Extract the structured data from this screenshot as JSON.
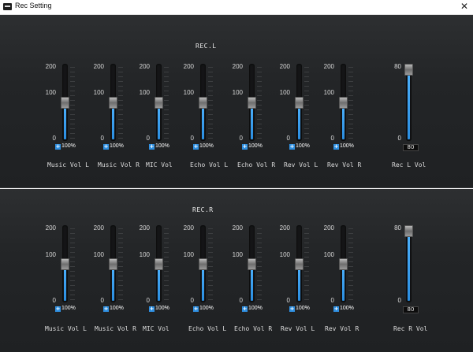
{
  "window": {
    "title": "Rec Setting",
    "close_glyph": "✕"
  },
  "sections": [
    {
      "title": "REC.L",
      "channels": [
        {
          "label": "Music Vol L",
          "max": "200",
          "mid": "100",
          "min": "0",
          "percent": "100%",
          "level": 100,
          "range": 200
        },
        {
          "label": "Music Vol R",
          "max": "200",
          "mid": "100",
          "min": "0",
          "percent": "100%",
          "level": 100,
          "range": 200
        },
        {
          "label": "MIC Vol",
          "max": "200",
          "mid": "100",
          "min": "0",
          "percent": "100%",
          "level": 100,
          "range": 200
        },
        {
          "label": "Echo Vol L",
          "max": "200",
          "mid": "100",
          "min": "0",
          "percent": "100%",
          "level": 100,
          "range": 200
        },
        {
          "label": "Echo Vol R",
          "max": "200",
          "mid": "100",
          "min": "0",
          "percent": "100%",
          "level": 100,
          "range": 200
        },
        {
          "label": "Rev Vol L",
          "max": "200",
          "mid": "100",
          "min": "0",
          "percent": "100%",
          "level": 100,
          "range": 200
        },
        {
          "label": "Rev Vol R",
          "max": "200",
          "mid": "100",
          "min": "0",
          "percent": "100%",
          "level": 100,
          "range": 200
        }
      ],
      "master": {
        "label": "Rec L Vol",
        "max": "80",
        "min": "0",
        "value": "80",
        "level": 80,
        "range": 80
      }
    },
    {
      "title": "REC.R",
      "channels": [
        {
          "label": "Music Vol L",
          "max": "200",
          "mid": "100",
          "min": "0",
          "percent": "100%",
          "level": 100,
          "range": 200
        },
        {
          "label": "Music Vol R",
          "max": "200",
          "mid": "100",
          "min": "0",
          "percent": "100%",
          "level": 100,
          "range": 200
        },
        {
          "label": "MIC Vol",
          "max": "200",
          "mid": "100",
          "min": "0",
          "percent": "100%",
          "level": 100,
          "range": 200
        },
        {
          "label": "Echo Vol L",
          "max": "200",
          "mid": "100",
          "min": "0",
          "percent": "100%",
          "level": 100,
          "range": 200
        },
        {
          "label": "Echo Vol R",
          "max": "200",
          "mid": "100",
          "min": "0",
          "percent": "100%",
          "level": 100,
          "range": 200
        },
        {
          "label": "Rev Vol L",
          "max": "200",
          "mid": "100",
          "min": "0",
          "percent": "100%",
          "level": 100,
          "range": 200
        },
        {
          "label": "Rev Vol R",
          "max": "200",
          "mid": "100",
          "min": "0",
          "percent": "100%",
          "level": 100,
          "range": 200
        }
      ],
      "master": {
        "label": "Rec R Vol",
        "max": "80",
        "min": "0",
        "value": "80",
        "level": 80,
        "range": 80
      }
    }
  ],
  "icons": {
    "app": "mixer-app-icon",
    "close": "close-icon",
    "plus": "plus-icon"
  },
  "colors": {
    "accent": "#2f8fe0",
    "panel": "#232527",
    "text": "#dcdcdc"
  }
}
